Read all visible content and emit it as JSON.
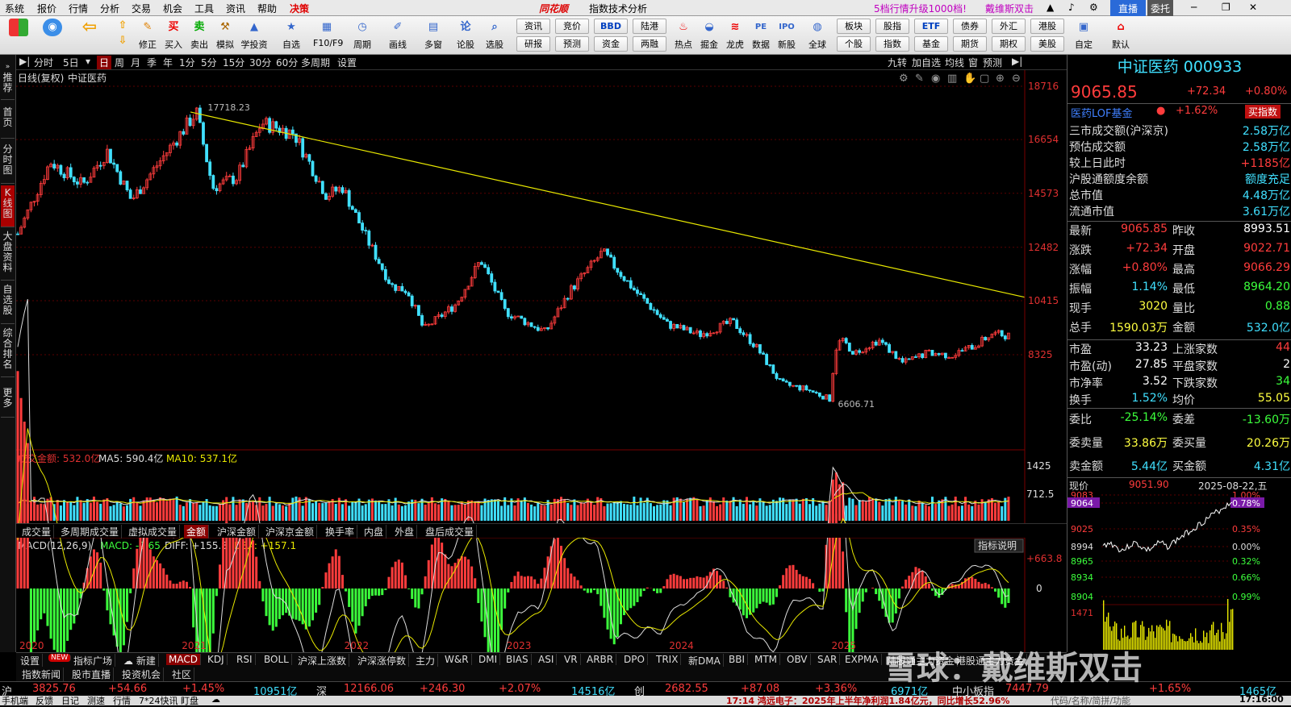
{
  "menubar": {
    "items": [
      "系统",
      "报价",
      "行情",
      "分析",
      "交易",
      "机会",
      "工具",
      "资讯",
      "帮助",
      "决策"
    ],
    "brand": "同花顺",
    "title": "指数技术分析",
    "promo": "5档行情升级1000档!",
    "promo2": "戴维斯双击",
    "btn_live": "直播",
    "btn_trust": "委托"
  },
  "toolbar": {
    "big": [
      {
        "label": "",
        "icon": "layout-icon"
      },
      {
        "label": "",
        "icon": "robot-icon"
      },
      {
        "label": "",
        "icon": "back-icon"
      },
      {
        "label": "修正",
        "icon": "pencil-icon"
      },
      {
        "label": "买入",
        "icon": "buy-icon"
      },
      {
        "label": "卖出",
        "icon": "sell-icon"
      },
      {
        "label": "模拟",
        "icon": "hammer-icon"
      },
      {
        "label": "学投资",
        "icon": "school-icon"
      },
      {
        "label": "自选",
        "icon": "star-icon"
      },
      {
        "label": "F10/F9",
        "icon": "f10-icon"
      },
      {
        "label": "周期",
        "icon": "clock-icon"
      },
      {
        "label": "画线",
        "icon": "draw-icon"
      },
      {
        "label": "多窗",
        "icon": "window-icon"
      },
      {
        "label": "论股",
        "icon": "talk-icon"
      },
      {
        "label": "选股",
        "icon": "search-icon"
      }
    ],
    "small_grid": [
      "资讯",
      "竞价",
      "BBD",
      "陆港",
      "研报",
      "预测",
      "资金",
      "两融"
    ],
    "mid": [
      {
        "label": "热点",
        "icon": "fire-icon"
      },
      {
        "label": "掘金",
        "icon": "gold-icon"
      },
      {
        "label": "龙虎",
        "icon": "dragon-icon"
      },
      {
        "label": "数据",
        "icon": "pe-icon"
      },
      {
        "label": "新股",
        "icon": "ipo-icon"
      },
      {
        "label": "全球",
        "icon": "globe-icon"
      }
    ],
    "small_grid2": [
      "板块",
      "股指",
      "ETF",
      "债券",
      "外汇",
      "港股",
      "个股",
      "指数",
      "基金",
      "期货",
      "期权",
      "美股"
    ],
    "right": [
      {
        "label": "自定",
        "icon": "custom-icon"
      },
      {
        "label": "默认",
        "icon": "home-icon"
      }
    ]
  },
  "leftnav": [
    "推荐",
    "首页",
    "分时图",
    "K线图",
    "大盘资料",
    "自选股",
    "综合排名",
    "更多"
  ],
  "periodbar": {
    "items": [
      "分时",
      "5日",
      "日",
      "周",
      "月",
      "季",
      "年",
      "1分",
      "5分",
      "15分",
      "30分",
      "60分",
      "多周期",
      "设置"
    ],
    "right": [
      "九转",
      "加自选",
      "均线",
      "窗",
      "预测"
    ]
  },
  "chart_data": {
    "type": "candlestick",
    "label": "日线(复权)",
    "name": "中证医药",
    "x_labels": [
      "2020",
      "2021",
      "2022",
      "2023",
      "2024",
      "2025"
    ],
    "y_ticks": [
      18716,
      16654,
      14573,
      12482,
      10415,
      8325
    ],
    "high_label": "17718.23",
    "low_label": "6606.71",
    "trendline": {
      "from": {
        "date": "2021-02",
        "value": 17718.23
      },
      "to": {
        "date": "2025-08",
        "value": 10550
      }
    },
    "price_path": [
      [
        2020.0,
        13000
      ],
      [
        2020.2,
        15800
      ],
      [
        2020.4,
        14900
      ],
      [
        2020.55,
        16200
      ],
      [
        2020.7,
        14300
      ],
      [
        2020.85,
        15600
      ],
      [
        2021.1,
        17718
      ],
      [
        2021.2,
        14800
      ],
      [
        2021.35,
        15200
      ],
      [
        2021.5,
        17300
      ],
      [
        2021.7,
        16900
      ],
      [
        2021.9,
        14500
      ],
      [
        2022.0,
        14800
      ],
      [
        2022.15,
        12800
      ],
      [
        2022.3,
        11000
      ],
      [
        2022.4,
        10800
      ],
      [
        2022.5,
        9300
      ],
      [
        2022.7,
        10300
      ],
      [
        2022.85,
        12000
      ],
      [
        2023.0,
        10000
      ],
      [
        2023.25,
        9200
      ],
      [
        2023.4,
        10800
      ],
      [
        2023.6,
        12300
      ],
      [
        2023.8,
        10800
      ],
      [
        2024.0,
        9500
      ],
      [
        2024.2,
        9100
      ],
      [
        2024.4,
        9600
      ],
      [
        2024.55,
        8600
      ],
      [
        2024.7,
        7200
      ],
      [
        2024.85,
        7000
      ],
      [
        2025.0,
        6606
      ],
      [
        2025.05,
        9000
      ],
      [
        2025.15,
        8400
      ],
      [
        2025.3,
        8900
      ],
      [
        2025.45,
        8000
      ],
      [
        2025.6,
        8400
      ],
      [
        2025.75,
        8300
      ],
      [
        2025.9,
        8700
      ],
      [
        2026.0,
        9150
      ],
      [
        2026.1,
        9065
      ]
    ],
    "volume": {
      "label": "成交金额: 532.0亿",
      "ma5": "MA5: 590.4亿",
      "ma10": "MA10: 537.1亿",
      "ticks": [
        "1425",
        "712.5"
      ],
      "max": 1425
    },
    "macd": {
      "label": "MACD(12,26,9)",
      "macd": "MACD: -2.65",
      "diff": "DIFF: +155.8",
      "dea": "DEA: +157.1",
      "ticks": [
        "+663.8",
        "0"
      ],
      "btn": "指标说明"
    }
  },
  "tabs1": [
    "成交量",
    "多周期成交量",
    "虚拟成交量",
    "金额",
    "沪深金额",
    "沪深京金额",
    "换手率",
    "内盘",
    "外盘",
    "盘后成交量"
  ],
  "indicator_tabs": [
    "设置",
    "NEW",
    "指标广场",
    "新建",
    "MACD",
    "KDJ",
    "RSI",
    "BOLL",
    "沪深上涨数",
    "沪深涨停数",
    "主力",
    "W&R",
    "DMI",
    "BIAS",
    "ASI",
    "VR",
    "ARBR",
    "DPO",
    "TRIX",
    "新DMA",
    "BBI",
    "MTM",
    "OBV",
    "SAR",
    "EXPMA",
    "陆股通主力资金",
    "港股通主力资金"
  ],
  "bottom_tabs": [
    "指数新闻",
    "股市直播",
    "投资机会",
    "社区"
  ],
  "right": {
    "title": "中证医药 000933",
    "price": "9065.85",
    "change": "+72.34",
    "pct": "+0.80%",
    "fund": "医药LOF基金",
    "fund_pct": "+1.62%",
    "fund_btn": "买指数",
    "stats": [
      {
        "k": "三市成交额(沪深京)",
        "v": "2.58万亿",
        "c": "cya"
      },
      {
        "k": "预估成交额",
        "v": "2.58万亿",
        "c": "cya"
      },
      {
        "k": "较上日此时",
        "v": "+1185亿",
        "c": "red"
      },
      {
        "k": "沪股通额度余额",
        "v": "额度充足",
        "c": "cya"
      },
      {
        "k": "总市值",
        "v": "4.48万亿",
        "c": "cya"
      },
      {
        "k": "流通市值",
        "v": "3.61万亿",
        "c": "cya"
      }
    ],
    "quote": [
      {
        "k1": "最新",
        "v1": "9065.85",
        "c1": "red",
        "k2": "昨收",
        "v2": "8993.51",
        "c2": "wht"
      },
      {
        "k1": "涨跌",
        "v1": "+72.34",
        "c1": "red",
        "k2": "开盘",
        "v2": "9022.71",
        "c2": "red"
      },
      {
        "k1": "涨幅",
        "v1": "+0.80%",
        "c1": "red",
        "k2": "最高",
        "v2": "9066.29",
        "c2": "red"
      },
      {
        "k1": "振幅",
        "v1": "1.14%",
        "c1": "cya",
        "k2": "最低",
        "v2": "8964.20",
        "c2": "grn"
      },
      {
        "k1": "现手",
        "v1": "3020",
        "c1": "yel",
        "k2": "量比",
        "v2": "0.88",
        "c2": "grn"
      },
      {
        "k1": "总手",
        "v1": "1590.03万",
        "c1": "yel",
        "k2": "金额",
        "v2": "532.0亿",
        "c2": "cya"
      }
    ],
    "quote2": [
      {
        "k1": "市盈",
        "v1": "33.23",
        "c1": "wht",
        "k2": "上涨家数",
        "v2": "44",
        "c2": "red"
      },
      {
        "k1": "市盈(动)",
        "v1": "27.85",
        "c1": "wht",
        "k2": "平盘家数",
        "v2": "2",
        "c2": "wht"
      },
      {
        "k1": "市净率",
        "v1": "3.52",
        "c1": "wht",
        "k2": "下跌家数",
        "v2": "34",
        "c2": "grn"
      },
      {
        "k1": "换手",
        "v1": "1.52%",
        "c1": "cya",
        "k2": "均价",
        "v2": "55.05",
        "c2": "yel"
      }
    ],
    "quote3": [
      {
        "k1": "委比",
        "v1": "-25.14%",
        "c1": "grn",
        "k2": "委差",
        "v2": "-13.60万",
        "c2": "grn"
      },
      {
        "k1": "委卖量",
        "v1": "33.86万",
        "c1": "yel",
        "k2": "委买量",
        "v2": "20.26万",
        "c2": "yel"
      },
      {
        "k1": "卖金额",
        "v1": "5.44亿",
        "c1": "cya",
        "k2": "买金额",
        "v2": "4.31亿",
        "c2": "cya"
      }
    ],
    "mini": {
      "label": "现价",
      "price": "9051.90",
      "date": "2025-08-22,五",
      "yticks": [
        "9083",
        "9064",
        "9025",
        "8994",
        "8965",
        "8934",
        "8904"
      ],
      "pticks": [
        "1.00%",
        "0.78%",
        "0.35%",
        "0.00%",
        "0.32%",
        "0.66%",
        "0.99%"
      ],
      "vol": "1471",
      "vol2": "1465亿"
    }
  },
  "status": {
    "sh": {
      "k": "沪",
      "v": "3825.76",
      "d": "+54.66",
      "p": "+1.45%",
      "a": "10951亿"
    },
    "sz": {
      "k": "深",
      "v": "12166.06",
      "d": "+246.30",
      "p": "+2.07%",
      "a": "14516亿"
    },
    "cy": {
      "k": "创",
      "v": "2682.55",
      "d": "+87.08",
      "p": "+3.36%",
      "a": "6971亿"
    },
    "zx": {
      "k": "中小板指",
      "v": "7447.79",
      "p": "+1.65%",
      "a": "1465亿"
    }
  },
  "footer": {
    "items": [
      "手机端",
      "反馈",
      "日记",
      "测速",
      "行情",
      "7*24快讯",
      "盯盘"
    ],
    "news": "17:14 鸿远电子：2025年上半年净利润1.84亿元，同比增长52.96%",
    "search": "代码/名称/简拼/功能",
    "time": "17:16:00"
  },
  "watermark": "雪球：戴维斯双击"
}
